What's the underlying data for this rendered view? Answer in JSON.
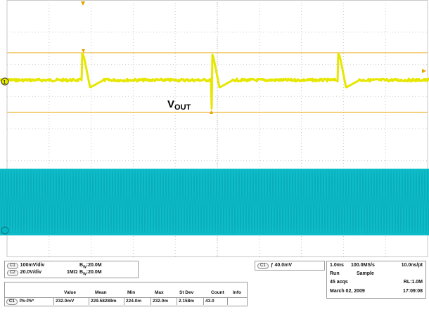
{
  "waveform_label": "V",
  "waveform_label_sub": "OUT",
  "colors": {
    "ch1": "#e6e600",
    "ch2": "#00b9c6",
    "grid": "#c9c9c9",
    "grid_major": "#e8a300"
  },
  "channels": {
    "c1": {
      "badge": "C1",
      "scale": "100mV/div",
      "bw_label": "B",
      "bw_sub": "W",
      "bandwidth": ":20.0M"
    },
    "c2": {
      "badge": "C2",
      "scale": "20.0V/div",
      "impedance": "1MΩ",
      "bw_label": "B",
      "bw_sub": "W",
      "bandwidth": ":20.0M"
    }
  },
  "trigger": {
    "badge": "C1",
    "level": "40.0mV"
  },
  "acquisition": {
    "timebase": "1.0ms",
    "sample_rate": "100.0MS/s",
    "resolution": "10.0ns/pt",
    "run_label": "Run",
    "mode": "Sample",
    "acqs": "45 acqs",
    "record_length": "RL:1.0M",
    "date": "March 02, 2009",
    "time": "17:09:08"
  },
  "measurement": {
    "headers": [
      "Value",
      "Mean",
      "Min",
      "Max",
      "St Dev",
      "Count",
      "Info"
    ],
    "badge": "C1",
    "name": "Pk-Pk*",
    "values": [
      "232.0mV",
      "229.58289m",
      "224.0m",
      "232.0m",
      "2.158m",
      "43.0",
      ""
    ]
  }
}
